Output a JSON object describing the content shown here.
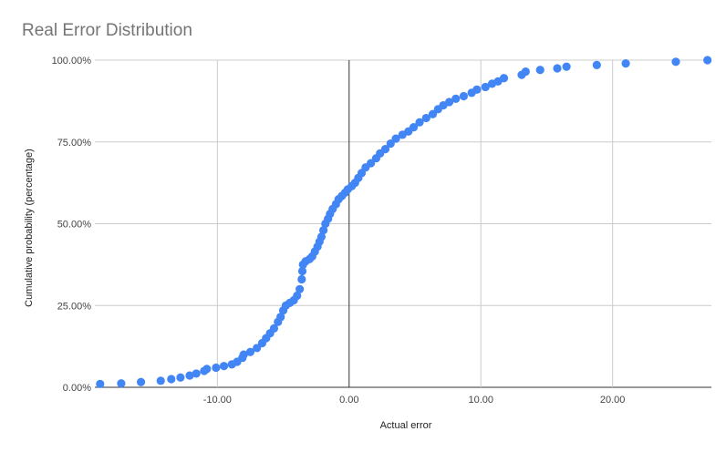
{
  "chart_data": {
    "type": "scatter",
    "title": "Real Error Distribution",
    "xlabel": "Actual error",
    "ylabel": "Cumulative probability (percentage)",
    "xlim": [
      -19.3,
      27.5
    ],
    "ylim": [
      0,
      1
    ],
    "x_ticks": [
      -10,
      0,
      10,
      20
    ],
    "x_tick_labels": [
      "-10.00",
      "0.00",
      "10.00",
      "20.00"
    ],
    "y_ticks": [
      0,
      0.25,
      0.5,
      0.75,
      1
    ],
    "y_tick_labels": [
      "0.00%",
      "25.00%",
      "50.00%",
      "75.00%",
      "100.00%"
    ],
    "grid": true,
    "legend": "none",
    "color": "#4285f4",
    "series": [
      {
        "points": [
          [
            -18.9,
            0.01
          ],
          [
            -17.3,
            0.012
          ],
          [
            -15.8,
            0.016
          ],
          [
            -14.3,
            0.02
          ],
          [
            -13.5,
            0.025
          ],
          [
            -12.8,
            0.03
          ],
          [
            -12.1,
            0.036
          ],
          [
            -11.6,
            0.042
          ],
          [
            -11.0,
            0.05
          ],
          [
            -10.8,
            0.056
          ],
          [
            -10.1,
            0.06
          ],
          [
            -9.5,
            0.065
          ],
          [
            -8.9,
            0.07
          ],
          [
            -8.5,
            0.078
          ],
          [
            -8.1,
            0.09
          ],
          [
            -8.0,
            0.1
          ],
          [
            -7.5,
            0.108
          ],
          [
            -7.0,
            0.12
          ],
          [
            -6.6,
            0.135
          ],
          [
            -6.3,
            0.15
          ],
          [
            -6.0,
            0.165
          ],
          [
            -5.7,
            0.18
          ],
          [
            -5.4,
            0.2
          ],
          [
            -5.2,
            0.215
          ],
          [
            -5.0,
            0.235
          ],
          [
            -4.8,
            0.25
          ],
          [
            -4.5,
            0.258
          ],
          [
            -4.2,
            0.266
          ],
          [
            -3.95,
            0.28
          ],
          [
            -3.75,
            0.3
          ],
          [
            -3.6,
            0.33
          ],
          [
            -3.55,
            0.355
          ],
          [
            -3.5,
            0.375
          ],
          [
            -3.3,
            0.385
          ],
          [
            -3.0,
            0.392
          ],
          [
            -2.8,
            0.4
          ],
          [
            -2.6,
            0.415
          ],
          [
            -2.4,
            0.43
          ],
          [
            -2.25,
            0.445
          ],
          [
            -2.1,
            0.46
          ],
          [
            -1.95,
            0.48
          ],
          [
            -1.8,
            0.5
          ],
          [
            -1.6,
            0.515
          ],
          [
            -1.45,
            0.53
          ],
          [
            -1.25,
            0.545
          ],
          [
            -1.0,
            0.56
          ],
          [
            -0.8,
            0.575
          ],
          [
            -0.55,
            0.585
          ],
          [
            -0.3,
            0.595
          ],
          [
            -0.1,
            0.605
          ],
          [
            0.2,
            0.615
          ],
          [
            0.45,
            0.625
          ],
          [
            0.7,
            0.64
          ],
          [
            0.95,
            0.655
          ],
          [
            1.25,
            0.672
          ],
          [
            1.65,
            0.685
          ],
          [
            2.05,
            0.7
          ],
          [
            2.35,
            0.715
          ],
          [
            2.75,
            0.728
          ],
          [
            3.15,
            0.745
          ],
          [
            3.55,
            0.76
          ],
          [
            4.05,
            0.772
          ],
          [
            4.5,
            0.782
          ],
          [
            4.9,
            0.795
          ],
          [
            5.35,
            0.81
          ],
          [
            5.85,
            0.823
          ],
          [
            6.35,
            0.835
          ],
          [
            6.75,
            0.85
          ],
          [
            7.15,
            0.862
          ],
          [
            7.6,
            0.872
          ],
          [
            8.1,
            0.882
          ],
          [
            8.7,
            0.89
          ],
          [
            9.3,
            0.9
          ],
          [
            9.7,
            0.91
          ],
          [
            10.35,
            0.918
          ],
          [
            10.85,
            0.928
          ],
          [
            11.3,
            0.935
          ],
          [
            11.75,
            0.945
          ],
          [
            13.1,
            0.955
          ],
          [
            13.4,
            0.965
          ],
          [
            14.5,
            0.97
          ],
          [
            15.8,
            0.975
          ],
          [
            16.5,
            0.98
          ],
          [
            18.8,
            0.985
          ],
          [
            21.0,
            0.99
          ],
          [
            24.8,
            0.995
          ],
          [
            27.2,
            1.0
          ]
        ]
      }
    ]
  }
}
